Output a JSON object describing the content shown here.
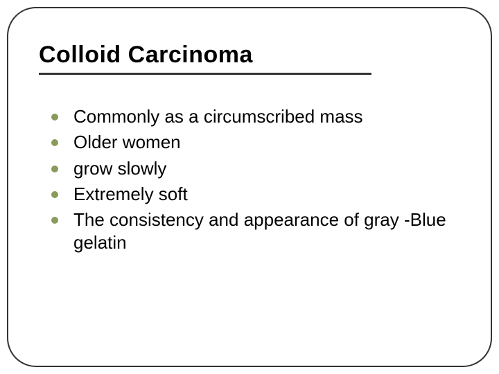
{
  "slide": {
    "title": "Colloid Carcinoma",
    "title_fontsize": 34,
    "title_color": "#000000",
    "underline_color": "#333333",
    "border_color": "#333333",
    "border_radius": 42,
    "background_color": "#ffffff",
    "bullet_marker_color": "#8a9a5b",
    "bullet_marker_size": 10,
    "body_fontsize": 26,
    "body_color": "#000000",
    "bullets": [
      "Commonly as a circumscribed mass",
      "Older women",
      "grow slowly",
      "Extremely soft",
      "The consistency and appearance of gray -Blue gelatin"
    ]
  }
}
